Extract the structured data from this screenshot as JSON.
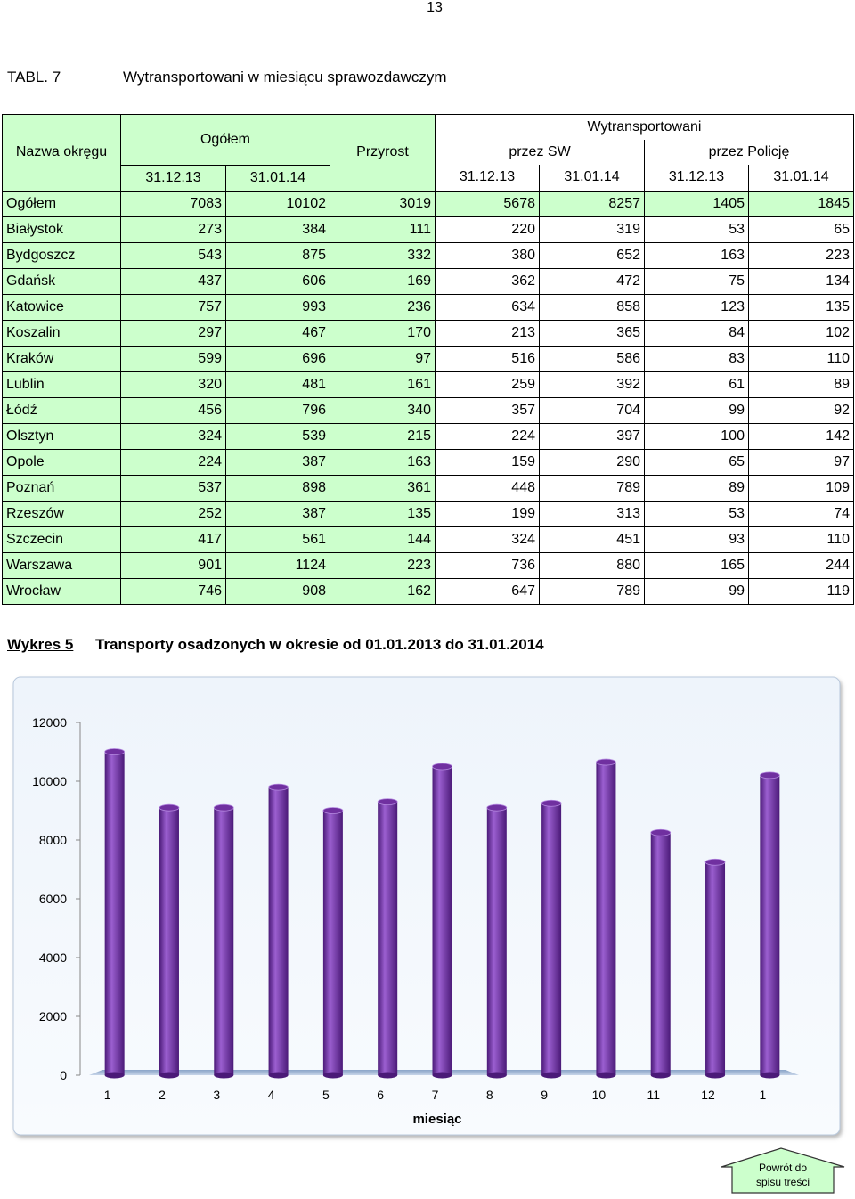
{
  "page_number": "13",
  "table_label": "TABL. 7",
  "table_title": "Wytransportowani w miesiącu sprawozdawczym",
  "table": {
    "headers": {
      "name": "Nazwa okręgu",
      "total": "Ogółem",
      "growth": "Przyrost",
      "transported": "Wytransportowani",
      "sw": "przez SW",
      "police": "przez Policję",
      "dates": [
        "31.12.13",
        "31.01.14",
        "31.12.13",
        "31.01.14",
        "31.12.13",
        "31.01.14"
      ]
    },
    "rows": [
      [
        "Ogółem",
        7083,
        10102,
        3019,
        5678,
        8257,
        1405,
        1845
      ],
      [
        "Białystok",
        273,
        384,
        111,
        220,
        319,
        53,
        65
      ],
      [
        "Bydgoszcz",
        543,
        875,
        332,
        380,
        652,
        163,
        223
      ],
      [
        "Gdańsk",
        437,
        606,
        169,
        362,
        472,
        75,
        134
      ],
      [
        "Katowice",
        757,
        993,
        236,
        634,
        858,
        123,
        135
      ],
      [
        "Koszalin",
        297,
        467,
        170,
        213,
        365,
        84,
        102
      ],
      [
        "Kraków",
        599,
        696,
        97,
        516,
        586,
        83,
        110
      ],
      [
        "Lublin",
        320,
        481,
        161,
        259,
        392,
        61,
        89
      ],
      [
        "Łódź",
        456,
        796,
        340,
        357,
        704,
        99,
        92
      ],
      [
        "Olsztyn",
        324,
        539,
        215,
        224,
        397,
        100,
        142
      ],
      [
        "Opole",
        224,
        387,
        163,
        159,
        290,
        65,
        97
      ],
      [
        "Poznań",
        537,
        898,
        361,
        448,
        789,
        89,
        109
      ],
      [
        "Rzeszów",
        252,
        387,
        135,
        199,
        313,
        53,
        74
      ],
      [
        "Szczecin",
        417,
        561,
        144,
        324,
        451,
        93,
        110
      ],
      [
        "Warszawa",
        901,
        1124,
        223,
        736,
        880,
        165,
        244
      ],
      [
        "Wrocław",
        746,
        908,
        162,
        647,
        789,
        99,
        119
      ]
    ]
  },
  "chart_label": "Wykres  5",
  "chart_title": "Transporty osadzonych w okresie od 01.01.2013 do 31.01.2014",
  "chart_data": {
    "type": "bar",
    "categories": [
      "1",
      "2",
      "3",
      "4",
      "5",
      "6",
      "7",
      "8",
      "9",
      "10",
      "11",
      "12",
      "1"
    ],
    "values": [
      11000,
      9100,
      9100,
      9800,
      9000,
      9300,
      10500,
      9100,
      9250,
      10650,
      8250,
      7250,
      10200
    ],
    "color": "#7030a0",
    "ylim": [
      0,
      12000
    ],
    "yticks": [
      0,
      2000,
      4000,
      6000,
      8000,
      10000,
      12000
    ],
    "x_label": "miesiąc"
  },
  "button": [
    "Powrót do",
    "spisu treści"
  ]
}
